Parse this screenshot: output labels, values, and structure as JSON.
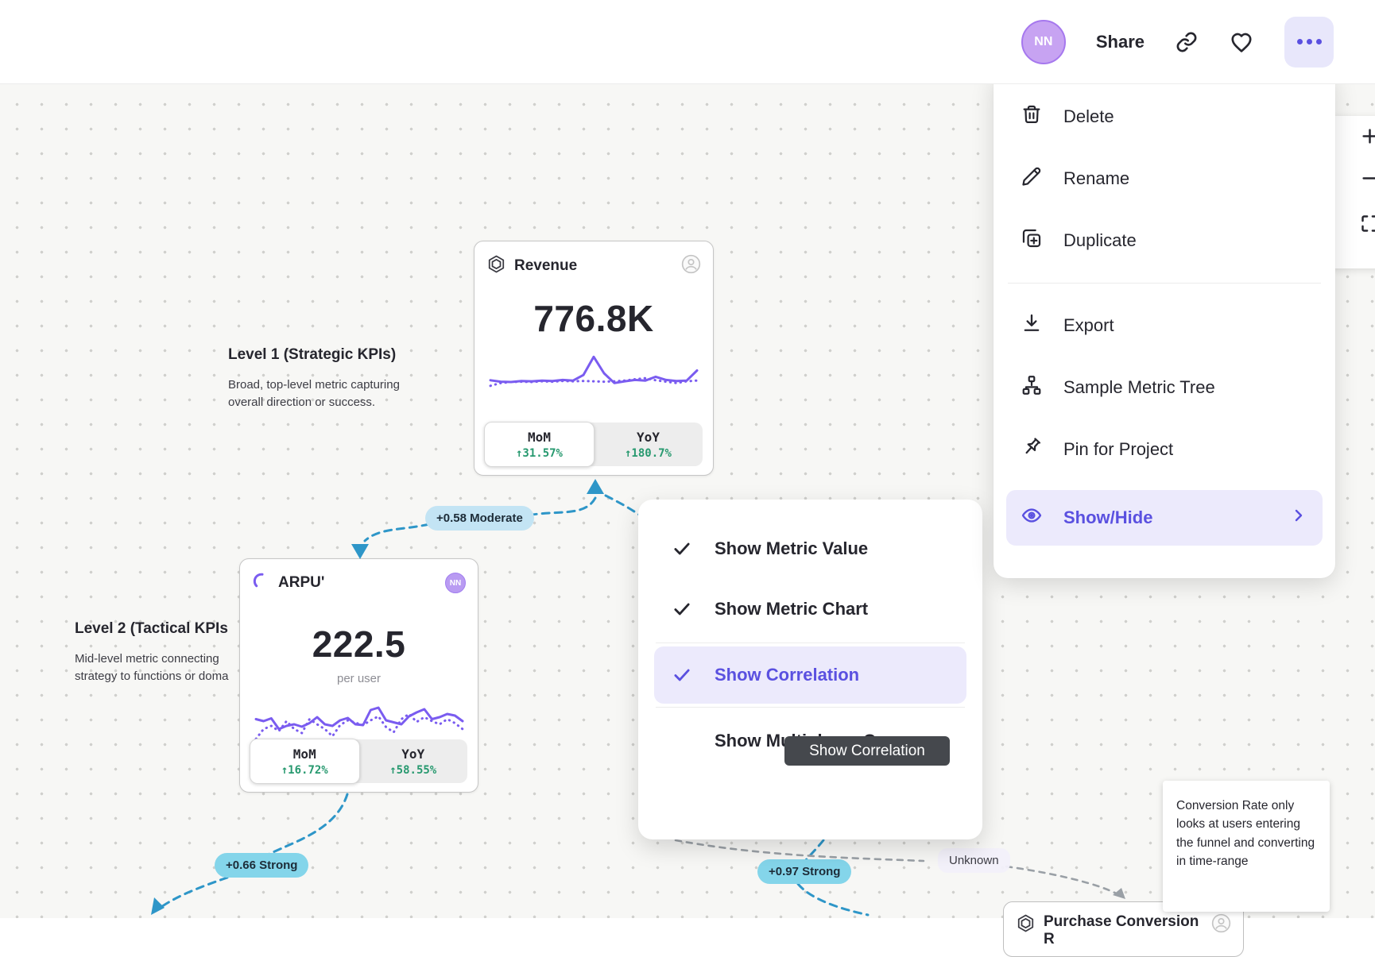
{
  "topbar": {
    "avatar_initials": "NN",
    "share_label": "Share"
  },
  "menu": {
    "items": [
      {
        "label": "Delete",
        "icon": "trash-icon"
      },
      {
        "label": "Rename",
        "icon": "pencil-icon"
      },
      {
        "label": "Duplicate",
        "icon": "duplicate-icon"
      },
      {
        "label": "Export",
        "icon": "download-icon"
      },
      {
        "label": "Sample Metric Tree",
        "icon": "metric-tree-icon"
      },
      {
        "label": "Pin for Project",
        "icon": "pin-icon"
      },
      {
        "label": "Show/Hide",
        "icon": "eye-icon",
        "active": true
      }
    ]
  },
  "context_menu": {
    "items": [
      {
        "label": "Show Metric Value",
        "checked": true
      },
      {
        "label": "Show Metric Chart",
        "checked": true
      },
      {
        "label": "Show Correlation",
        "checked": true,
        "active": true
      },
      {
        "label": "Show Multiplayer Cursors",
        "checked": false
      }
    ],
    "tooltip": "Show Correlation"
  },
  "cards": {
    "revenue": {
      "title": "Revenue",
      "value": "776.8K",
      "mom_label": "MoM",
      "mom_value": "↑31.57%",
      "yoy_label": "YoY",
      "yoy_value": "↑180.7%"
    },
    "arpu": {
      "title": "ARPU'",
      "value": "222.5",
      "unit": "per user",
      "avatar_initials": "NN",
      "mom_label": "MoM",
      "mom_value": "↑16.72%",
      "yoy_label": "YoY",
      "yoy_value": "↑58.55%"
    },
    "purchase": {
      "title": "Purchase Conversion R"
    }
  },
  "labels": {
    "level1_title": "Level 1 (Strategic KPIs)",
    "level1_desc_line1": "Broad, top-level metric capturing",
    "level1_desc_line2": "overall direction or success.",
    "level2_title": "Level 2 (Tactical KPIs",
    "level2_desc_line1": "Mid-level metric connecting",
    "level2_desc_line2": "strategy to functions or doma"
  },
  "badges": {
    "rev_arpu": {
      "label": "+0.58 Moderate",
      "tone": "moderate"
    },
    "arpu_down": {
      "label": "+0.66 Strong",
      "tone": "strong"
    },
    "mid_down": {
      "label": "+0.97 Strong",
      "tone": "strong"
    },
    "unknown": {
      "label": "Unknown",
      "tone": "unknown"
    }
  },
  "note_tooltip": {
    "text": "Conversion Rate only looks at users entering the funnel and converting in time-range"
  },
  "colors": {
    "accent_purple": "#5a50e0",
    "chart_purple": "#7a5cf0",
    "positive_green": "#27996f",
    "correlation_blue": "#2e96c8",
    "badge_moderate": "#c3e4f4",
    "badge_strong": "#84d5ea",
    "menu_highlight": "#eceafc",
    "dark_tooltip_bg": "#45484d"
  },
  "chart_data": [
    {
      "type": "line",
      "name": "Revenue sparkline",
      "legend_position": "none",
      "grid": false,
      "series": [
        {
          "name": "current",
          "style": "solid",
          "values": [
            0.3,
            0.26,
            0.25,
            0.28,
            0.27,
            0.29,
            0.28,
            0.31,
            0.29,
            0.45,
            0.97,
            0.5,
            0.22,
            0.27,
            0.31,
            0.29,
            0.4,
            0.31,
            0.28,
            0.29,
            0.58
          ]
        },
        {
          "name": "previous-period",
          "style": "dotted",
          "values": [
            0.14,
            0.22,
            0.25,
            0.26,
            0.25,
            0.27,
            0.26,
            0.28,
            0.27,
            0.28,
            0.27,
            0.26,
            0.27,
            0.29,
            0.33,
            0.36,
            0.3,
            0.26,
            0.22,
            0.27,
            0.29
          ]
        }
      ]
    },
    {
      "type": "line",
      "name": "ARPU sparkline",
      "legend_position": "none",
      "grid": false,
      "series": [
        {
          "name": "current",
          "style": "solid",
          "values": [
            0.55,
            0.5,
            0.57,
            0.3,
            0.38,
            0.42,
            0.36,
            0.45,
            0.6,
            0.42,
            0.38,
            0.52,
            0.58,
            0.42,
            0.4,
            0.78,
            0.84,
            0.52,
            0.47,
            0.42,
            0.62,
            0.72,
            0.8,
            0.55,
            0.6,
            0.68,
            0.64,
            0.5
          ]
        },
        {
          "name": "previous-period",
          "style": "dotted",
          "values": [
            0.05,
            0.3,
            0.38,
            0.25,
            0.5,
            0.3,
            0.2,
            0.55,
            0.42,
            0.3,
            0.12,
            0.4,
            0.52,
            0.46,
            0.4,
            0.52,
            0.62,
            0.35,
            0.22,
            0.55,
            0.68,
            0.48,
            0.6,
            0.5,
            0.42,
            0.55,
            0.45,
            0.3
          ]
        }
      ]
    }
  ]
}
